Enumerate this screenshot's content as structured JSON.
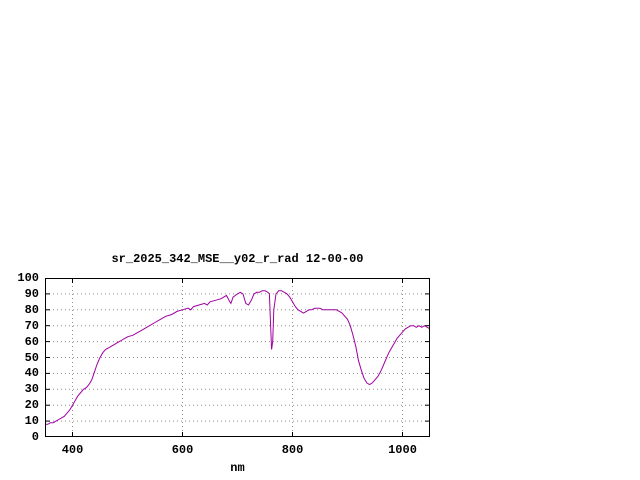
{
  "page": {
    "background": "#ffffff"
  },
  "chart_data": {
    "type": "line",
    "title": "sr_2025_342_MSE__y02_r_rad 12-00-00",
    "xlabel": "nm",
    "ylabel": "",
    "xlim": [
      350,
      1050
    ],
    "ylim": [
      0,
      100
    ],
    "xticks": [
      400,
      600,
      800,
      1000
    ],
    "yticks": [
      0,
      10,
      20,
      30,
      40,
      50,
      60,
      70,
      80,
      90,
      100
    ],
    "grid": true,
    "legend": "none",
    "line_color": "#a000a0",
    "grid_color": "#909090",
    "x": [
      350,
      355,
      360,
      365,
      370,
      375,
      380,
      385,
      390,
      395,
      400,
      405,
      410,
      415,
      420,
      425,
      430,
      435,
      440,
      445,
      450,
      455,
      460,
      465,
      470,
      475,
      480,
      485,
      490,
      495,
      500,
      510,
      520,
      530,
      540,
      550,
      560,
      570,
      580,
      590,
      600,
      610,
      615,
      620,
      630,
      640,
      645,
      650,
      660,
      670,
      680,
      686,
      688,
      692,
      700,
      705,
      710,
      715,
      720,
      725,
      730,
      735,
      740,
      745,
      750,
      755,
      758,
      760,
      762,
      764,
      766,
      770,
      775,
      780,
      785,
      790,
      795,
      800,
      805,
      810,
      815,
      820,
      825,
      830,
      835,
      840,
      845,
      850,
      855,
      860,
      865,
      870,
      875,
      880,
      885,
      890,
      895,
      900,
      905,
      910,
      915,
      920,
      925,
      930,
      935,
      940,
      945,
      950,
      955,
      960,
      965,
      970,
      975,
      980,
      985,
      990,
      995,
      1000,
      1005,
      1010,
      1015,
      1020,
      1025,
      1030,
      1035,
      1040,
      1045,
      1050
    ],
    "values": [
      8,
      8,
      9,
      9,
      10,
      11,
      12,
      13,
      15,
      17,
      20,
      23,
      26,
      28,
      30,
      31,
      33,
      36,
      41,
      46,
      50,
      53,
      55,
      56,
      57,
      58,
      59,
      60,
      61,
      62,
      63,
      64,
      66,
      68,
      70,
      72,
      74,
      76,
      77,
      79,
      80,
      81,
      80,
      82,
      83,
      84,
      83,
      85,
      86,
      87,
      89,
      85,
      84,
      88,
      90,
      91,
      90,
      84,
      83,
      86,
      90,
      91,
      91,
      92,
      92,
      91,
      90,
      72,
      55,
      60,
      80,
      90,
      92,
      92,
      91,
      90,
      88,
      85,
      82,
      80,
      79,
      78,
      79,
      80,
      80,
      81,
      81,
      81,
      80,
      80,
      80,
      80,
      80,
      80,
      79,
      78,
      76,
      74,
      70,
      64,
      57,
      48,
      42,
      37,
      34,
      33,
      34,
      36,
      38,
      41,
      45,
      49,
      53,
      56,
      59,
      62,
      64,
      66,
      68,
      69,
      70,
      70,
      69,
      70,
      69,
      70,
      69,
      68
    ]
  }
}
